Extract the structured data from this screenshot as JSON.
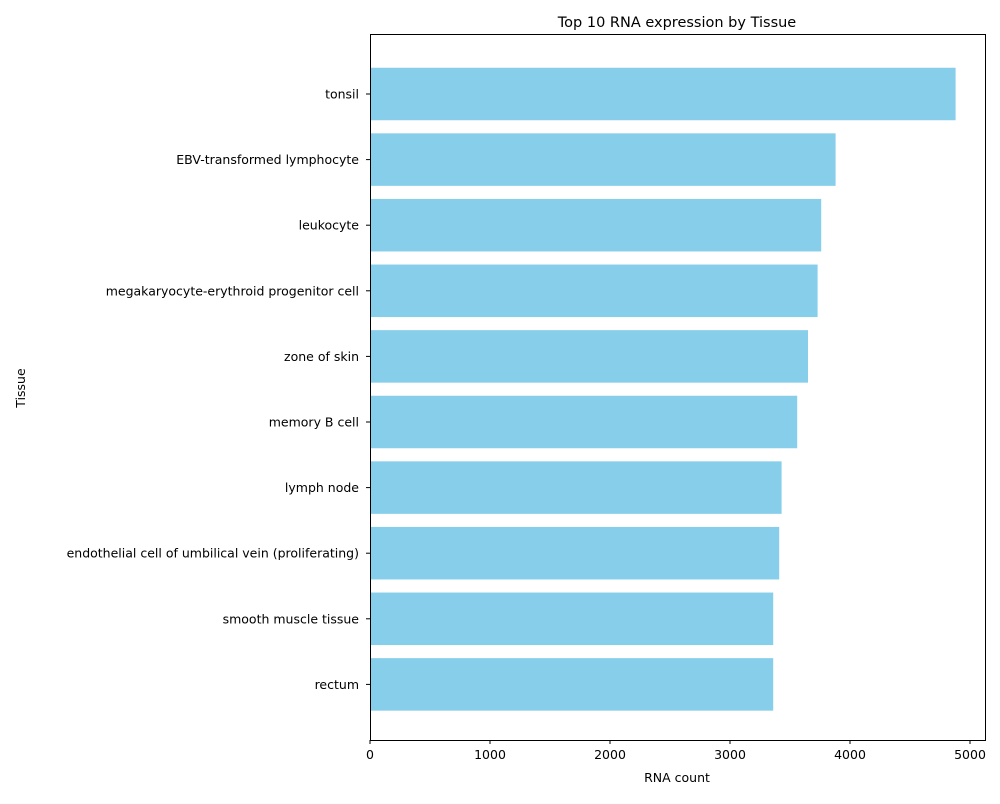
{
  "chart_data": {
    "type": "bar",
    "orientation": "horizontal",
    "title": "Top 10 RNA expression by Tissue",
    "xlabel": "RNA count",
    "ylabel": "Tissue",
    "xlim": [
      0,
      5125
    ],
    "x_ticks": [
      0,
      1000,
      2000,
      3000,
      4000,
      5000
    ],
    "grid": false,
    "bar_color": "#87CEEB",
    "categories": [
      "tonsil",
      "EBV-transformed lymphocyte",
      "leukocyte",
      "megakaryocyte-erythroid progenitor cell",
      "zone of skin",
      "memory B cell",
      "lymph node",
      "endothelial cell of umbilical vein (proliferating)",
      "smooth muscle tissue",
      "rectum"
    ],
    "values": [
      4880,
      3880,
      3760,
      3730,
      3650,
      3560,
      3430,
      3410,
      3360,
      3360
    ]
  }
}
